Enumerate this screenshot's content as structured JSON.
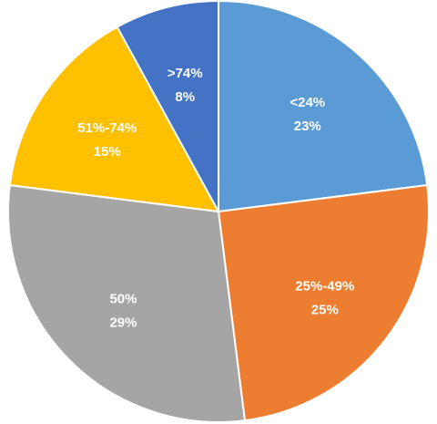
{
  "chart_data": {
    "type": "pie",
    "title": "",
    "start_angle_deg": 0,
    "direction": "clockwise",
    "slices": [
      {
        "category": "<24%",
        "value": 23,
        "value_label": "23%",
        "color": "#5B9BD5"
      },
      {
        "category": "25%-49%",
        "value": 25,
        "value_label": "25%",
        "color": "#ED7D31"
      },
      {
        "category": "50%",
        "value": 29,
        "value_label": "29%",
        "color": "#A5A5A5"
      },
      {
        "category": "51%-74%",
        "value": 15,
        "value_label": "15%",
        "color": "#FFC000"
      },
      {
        "category": ">74%",
        "value": 8,
        "value_label": "8%",
        "color": "#4472C4"
      }
    ]
  }
}
